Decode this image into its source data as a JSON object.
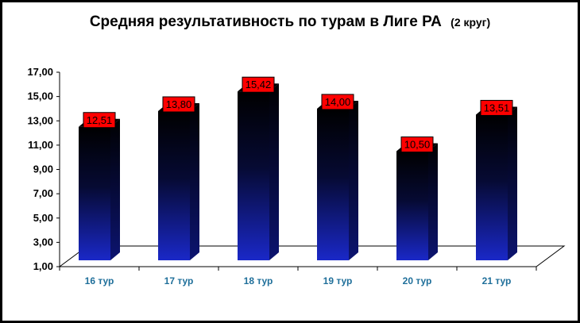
{
  "chart_data": {
    "type": "bar",
    "title": "Средняя результативность по турам в Лиге РА",
    "subtitle": "(2 круг)",
    "categories": [
      "16 тур",
      "17 тур",
      "18 тур",
      "19 тур",
      "20 тур",
      "21 тур"
    ],
    "values": [
      12.51,
      13.8,
      15.42,
      14.0,
      10.5,
      13.51
    ],
    "data_labels": [
      "12,51",
      "13,80",
      "15,42",
      "14,00",
      "10,50",
      "13,51"
    ],
    "ylim": [
      1,
      17
    ],
    "yticks": [
      "1,00",
      "3,00",
      "5,00",
      "7,00",
      "9,00",
      "11,00",
      "13,00",
      "15,00",
      "17,00"
    ],
    "ytick_values": [
      1,
      3,
      5,
      7,
      9,
      11,
      13,
      15,
      17
    ],
    "xlabel": "",
    "ylabel": "",
    "grid": false,
    "legend": "none",
    "colors": {
      "bar_top": "#000000",
      "bar_bottom": "#1a28c8",
      "label_bg": "#ff0000",
      "floor": "#ffffff",
      "xtick_text": "#1f6f9a"
    }
  }
}
